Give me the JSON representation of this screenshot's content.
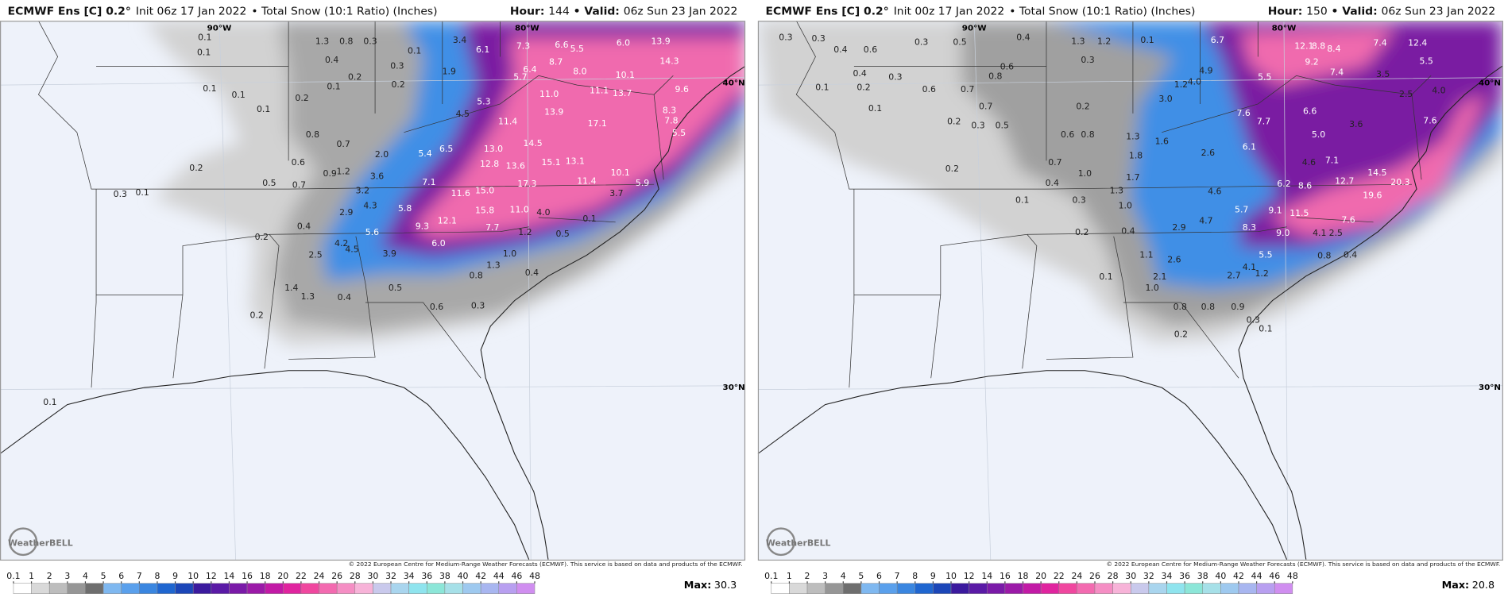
{
  "panels": [
    {
      "header": {
        "model": "ECMWF Ens [C] 0.2°",
        "init": "Init 06z 17 Jan 2022",
        "product": "• Total Snow (10:1 Ratio) (Inches)",
        "hour_label": "Hour:",
        "hour": "144",
        "valid_label": "• Valid:",
        "valid": "06z Sun 23 Jan 2022"
      },
      "lon_labels": [
        "90°W",
        "80°W"
      ],
      "lat_labels": [
        "40°N",
        "30°N"
      ],
      "logo": "WeatherBELL",
      "copyright": "© 2022 European Centre for Medium-Range Weather Forecasts (ECMWF). This service is based on data and products of the ECMWF.",
      "max_label": "Max:",
      "max": "30.3",
      "map_labels": [
        "0.1",
        "0.1",
        "1.3",
        "0.8",
        "0.3",
        "0.4",
        "0.3",
        "0.1",
        "0.2",
        "0.1",
        "0.2",
        "0.1",
        "0.1",
        "0.1",
        "0.2",
        "0.8",
        "0.7",
        "0.6",
        "0.9",
        "1.2",
        "0.5",
        "0.7",
        "0.2",
        "0.3",
        "0.1",
        "3.6",
        "3.2",
        "4.3",
        "2.9",
        "5.8",
        "5.6",
        "4.2",
        "4.5",
        "2.5",
        "0.4",
        "0.2",
        "1.4",
        "1.3",
        "0.4",
        "0.2",
        "0.5",
        "3.9",
        "9.3",
        "12.1",
        "6.0",
        "1.3",
        "0.8",
        "1.0",
        "0.4",
        "0.6",
        "0.3",
        "7.7",
        "11.0",
        "15.8",
        "1.2",
        "0.5",
        "0.1",
        "4.0",
        "7.1",
        "11.6",
        "15.0",
        "12.8",
        "13.6",
        "17.3",
        "11.4",
        "10.1",
        "3.7",
        "5.4",
        "6.5",
        "13.0",
        "14.5",
        "15.1",
        "13.1",
        "17.1",
        "11.4",
        "13.9",
        "11.0",
        "11.1",
        "13.7",
        "9.6",
        "4.5",
        "5.3",
        "1.9",
        "3.4",
        "6.1",
        "7.3",
        "6.4",
        "5.7",
        "6.6",
        "5.5",
        "6.0",
        "8.7",
        "8.0",
        "10.1",
        "13.9",
        "14.3",
        "8.3",
        "7.8",
        "5.5",
        "5.9",
        "2.0",
        "0.1"
      ]
    },
    {
      "header": {
        "model": "ECMWF Ens [C] 0.2°",
        "init": "Init 00z 17 Jan 2022",
        "product": "• Total Snow (10:1 Ratio) (Inches)",
        "hour_label": "Hour:",
        "hour": "150",
        "valid_label": "• Valid:",
        "valid": "06z Sun 23 Jan 2022"
      },
      "lon_labels": [
        "90°W",
        "80°W"
      ],
      "lat_labels": [
        "40°N",
        "30°N"
      ],
      "logo": "WeatherBELL",
      "copyright": "© 2022 European Centre for Medium-Range Weather Forecasts (ECMWF). This service is based on data and products of the ECMWF.",
      "max_label": "Max:",
      "max": "20.8",
      "map_labels": [
        "0.3",
        "0.3",
        "0.4",
        "0.6",
        "0.3",
        "0.5",
        "0.4",
        "1.3",
        "1.2",
        "0.1",
        "0.6",
        "0.3",
        "0.4",
        "0.3",
        "0.1",
        "0.2",
        "0.6",
        "0.7",
        "0.8",
        "0.1",
        "0.7",
        "0.2",
        "0.3",
        "0.5",
        "0.2",
        "0.6",
        "0.8",
        "1.3",
        "1.8",
        "1.6",
        "1.7",
        "1.0",
        "0.7",
        "0.4",
        "1.3",
        "1.0",
        "0.2",
        "0.1",
        "0.3",
        "0.2",
        "0.4",
        "1.1",
        "2.6",
        "2.1",
        "1.0",
        "2.9",
        "4.7",
        "5.7",
        "4.6",
        "6.2",
        "8.6",
        "12.7",
        "20.3",
        "19.6",
        "14.5",
        "9.1",
        "11.5",
        "7.6",
        "8.3",
        "9.0",
        "4.1",
        "2.5",
        "5.5",
        "4.1",
        "1.2",
        "2.7",
        "0.8",
        "0.4",
        "0.8",
        "0.8",
        "0.9",
        "0.3",
        "0.1",
        "0.2",
        "3.0",
        "4.0",
        "4.9",
        "1.2",
        "2.6",
        "6.1",
        "7.6",
        "7.7",
        "6.6",
        "5.0",
        "4.6",
        "7.1",
        "3.6",
        "5.5",
        "8.8",
        "8.4",
        "9.2",
        "7.4",
        "7.4",
        "12.4",
        "5.5",
        "3.5",
        "2.5",
        "4.0",
        "7.6",
        "12.1",
        "6.7",
        "0.1"
      ]
    }
  ],
  "colorbar": {
    "ticks": [
      0.1,
      1,
      2,
      3,
      4,
      5,
      6,
      7,
      8,
      9,
      10,
      12,
      14,
      16,
      18,
      20,
      22,
      24,
      26,
      28,
      30,
      32,
      34,
      36,
      38,
      40,
      42,
      44,
      46,
      48
    ],
    "colors": [
      "#ffffff",
      "#d9d9d9",
      "#bdbdbd",
      "#969696",
      "#6e6e6e",
      "#7fb8f0",
      "#5aa0ec",
      "#3a86e0",
      "#1f66d0",
      "#1b46b8",
      "#3b1a9e",
      "#5a1aa6",
      "#7a1aa8",
      "#9b1aa8",
      "#c21aa6",
      "#e0249f",
      "#f0479f",
      "#f36ab0",
      "#f58ec4",
      "#f7b3d8",
      "#c9c9ec",
      "#a9d5ee",
      "#8fe4ee",
      "#8ce6d8",
      "#a6e0e8",
      "#9ec9ef",
      "#a8b6f0",
      "#b89ff0",
      "#d08ef0"
    ]
  }
}
